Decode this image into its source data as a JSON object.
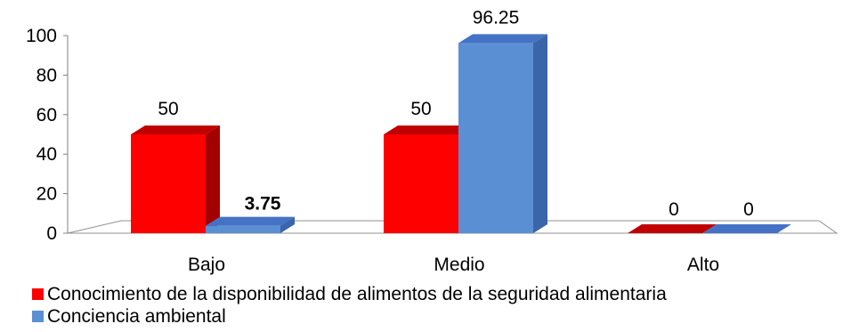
{
  "chart_data": {
    "type": "bar",
    "title": "",
    "xlabel": "",
    "ylabel": "",
    "ylim": [
      0,
      100
    ],
    "yticks": [
      0,
      20,
      40,
      60,
      80,
      100
    ],
    "grid": false,
    "style": "3d-clustered-column",
    "legend_position": "bottom-left",
    "categories": [
      "Bajo",
      "Medio",
      "Alto"
    ],
    "series": [
      {
        "name": "Conocimiento de la disponibilidad de alimentos de la seguridad alimentaria",
        "values": [
          50,
          50,
          0
        ],
        "labels": [
          "50",
          "50",
          "0"
        ],
        "color": "#ff0000",
        "side_color": "#a50000",
        "top_color": "#c00000"
      },
      {
        "name": "Conciencia ambiental",
        "values": [
          3.75,
          96.25,
          0
        ],
        "labels": [
          "3.75",
          "96.25",
          "0"
        ],
        "color": "#5b8fd4",
        "side_color": "#3a65a8",
        "top_color": "#4472c4"
      }
    ]
  }
}
